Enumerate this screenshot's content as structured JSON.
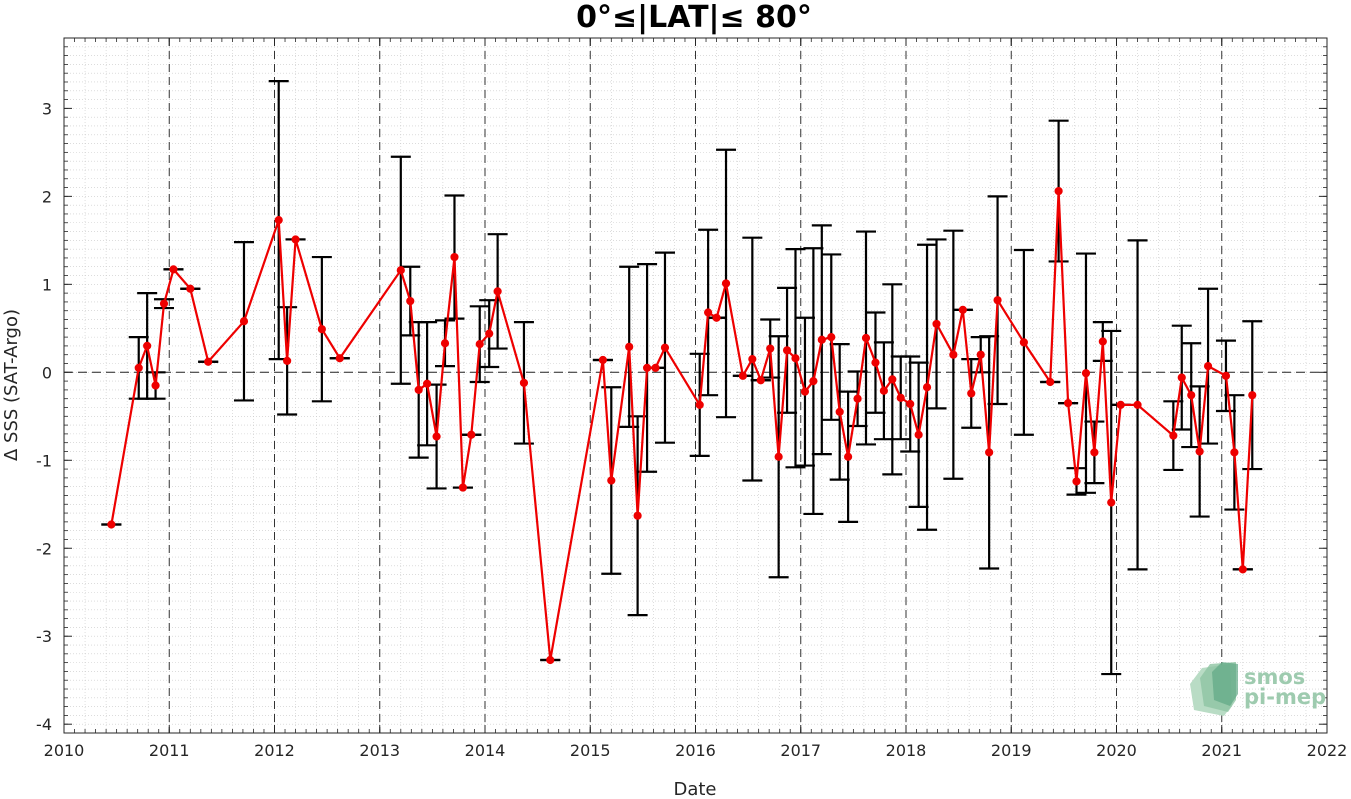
{
  "chart_data": {
    "type": "line",
    "title": "0°≤|LAT|≤ 80°",
    "xlabel": "Date",
    "ylabel": "Δ SSS (SAT-Argo)",
    "xlim": [
      2010,
      2022
    ],
    "ylim": [
      -4.1,
      3.8
    ],
    "x_ticks": [
      "2010",
      "2011",
      "2012",
      "2013",
      "2014",
      "2015",
      "2016",
      "2017",
      "2018",
      "2019",
      "2020",
      "2021",
      "2022"
    ],
    "y_ticks": [
      "-4",
      "-3",
      "-2",
      "-1",
      "0",
      "1",
      "2",
      "3"
    ],
    "grid": true,
    "reference_line_y": 0,
    "colors": {
      "line": "#ee0000",
      "errorbar": "#000000",
      "grid_major": "#333333"
    },
    "series": [
      {
        "x": [
          2010.45,
          2010.71,
          2010.79,
          2010.87,
          2010.95,
          2011.04,
          2011.2,
          2011.37,
          2011.71,
          2012.04,
          2012.12,
          2012.2,
          2012.45,
          2012.62,
          2013.2,
          2013.29,
          2013.37,
          2013.45,
          2013.54,
          2013.62,
          2013.71,
          2013.79,
          2013.87,
          2013.95,
          2014.04,
          2014.12,
          2014.37,
          2014.62,
          2015.12,
          2015.2,
          2015.37,
          2015.45,
          2015.54,
          2015.62,
          2015.71,
          2016.04,
          2016.12,
          2016.2,
          2016.29,
          2016.45,
          2016.54,
          2016.62,
          2016.71,
          2016.79,
          2016.87,
          2016.95,
          2017.04,
          2017.12,
          2017.2,
          2017.29,
          2017.37,
          2017.45,
          2017.54,
          2017.62,
          2017.71,
          2017.79,
          2017.87,
          2017.95,
          2018.04,
          2018.12,
          2018.2,
          2018.29,
          2018.45,
          2018.54,
          2018.62,
          2018.71,
          2018.79,
          2018.87,
          2019.12,
          2019.37,
          2019.45,
          2019.54,
          2019.62,
          2019.71,
          2019.79,
          2019.87,
          2019.95,
          2020.04,
          2020.2,
          2020.54,
          2020.62,
          2020.71,
          2020.79,
          2020.87,
          2021.04,
          2021.12,
          2021.2,
          2021.29
        ],
        "y": [
          -1.73,
          0.05,
          0.3,
          -0.15,
          0.78,
          1.17,
          0.95,
          0.12,
          0.58,
          1.73,
          0.13,
          1.51,
          0.49,
          0.16,
          1.16,
          0.81,
          -0.2,
          -0.13,
          -0.73,
          0.33,
          1.31,
          -1.31,
          -0.71,
          0.32,
          0.44,
          0.92,
          -0.12,
          -3.27,
          0.14,
          -1.23,
          0.29,
          -1.63,
          0.05,
          0.05,
          0.28,
          -0.37,
          0.68,
          0.62,
          1.01,
          -0.04,
          0.15,
          -0.09,
          0.27,
          -0.96,
          0.25,
          0.16,
          -0.22,
          -0.1,
          0.37,
          0.4,
          -0.45,
          -0.96,
          -0.3,
          0.39,
          0.11,
          -0.21,
          -0.08,
          -0.29,
          -0.36,
          -0.71,
          -0.17,
          0.55,
          0.2,
          0.71,
          -0.24,
          0.2,
          -0.91,
          0.82,
          0.34,
          -0.11,
          2.06,
          -0.35,
          -1.24,
          -0.01,
          -0.91,
          0.35,
          -1.48,
          -0.37,
          -0.37,
          -0.72,
          -0.06,
          -0.26,
          -0.9,
          0.07,
          -0.04,
          -0.91,
          -2.24,
          -0.26
        ],
        "error": [
          0,
          0.35,
          0.6,
          0.15,
          0.05,
          0.0,
          0.0,
          0.0,
          0.9,
          1.58,
          0.61,
          0.0,
          0.82,
          0.0,
          1.29,
          0.39,
          0.77,
          0.7,
          0.59,
          0.26,
          0.7,
          0.0,
          0.0,
          0.43,
          0.38,
          0.65,
          0.69,
          0.0,
          0.0,
          1.06,
          0.91,
          1.13,
          1.18,
          0.0,
          1.08,
          0.58,
          0.94,
          0.0,
          1.52,
          0.0,
          1.38,
          0.0,
          0.33,
          1.37,
          0.71,
          1.24,
          0.84,
          1.51,
          1.3,
          0.94,
          0.77,
          0.74,
          0.31,
          1.21,
          0.57,
          0.55,
          1.08,
          0.47,
          0.54,
          0.82,
          1.62,
          0.96,
          1.41,
          0.0,
          0.39,
          0.2,
          1.32,
          1.18,
          1.05,
          0.0,
          0.8,
          0.0,
          0.15,
          1.36,
          0.35,
          0.22,
          1.95,
          0.0,
          1.87,
          0.39,
          0.59,
          0.59,
          0.74,
          0.88,
          0.4,
          0.65,
          0.0,
          0.84
        ]
      }
    ]
  },
  "logo": {
    "line1": "smos",
    "line2": "pi-mep"
  }
}
